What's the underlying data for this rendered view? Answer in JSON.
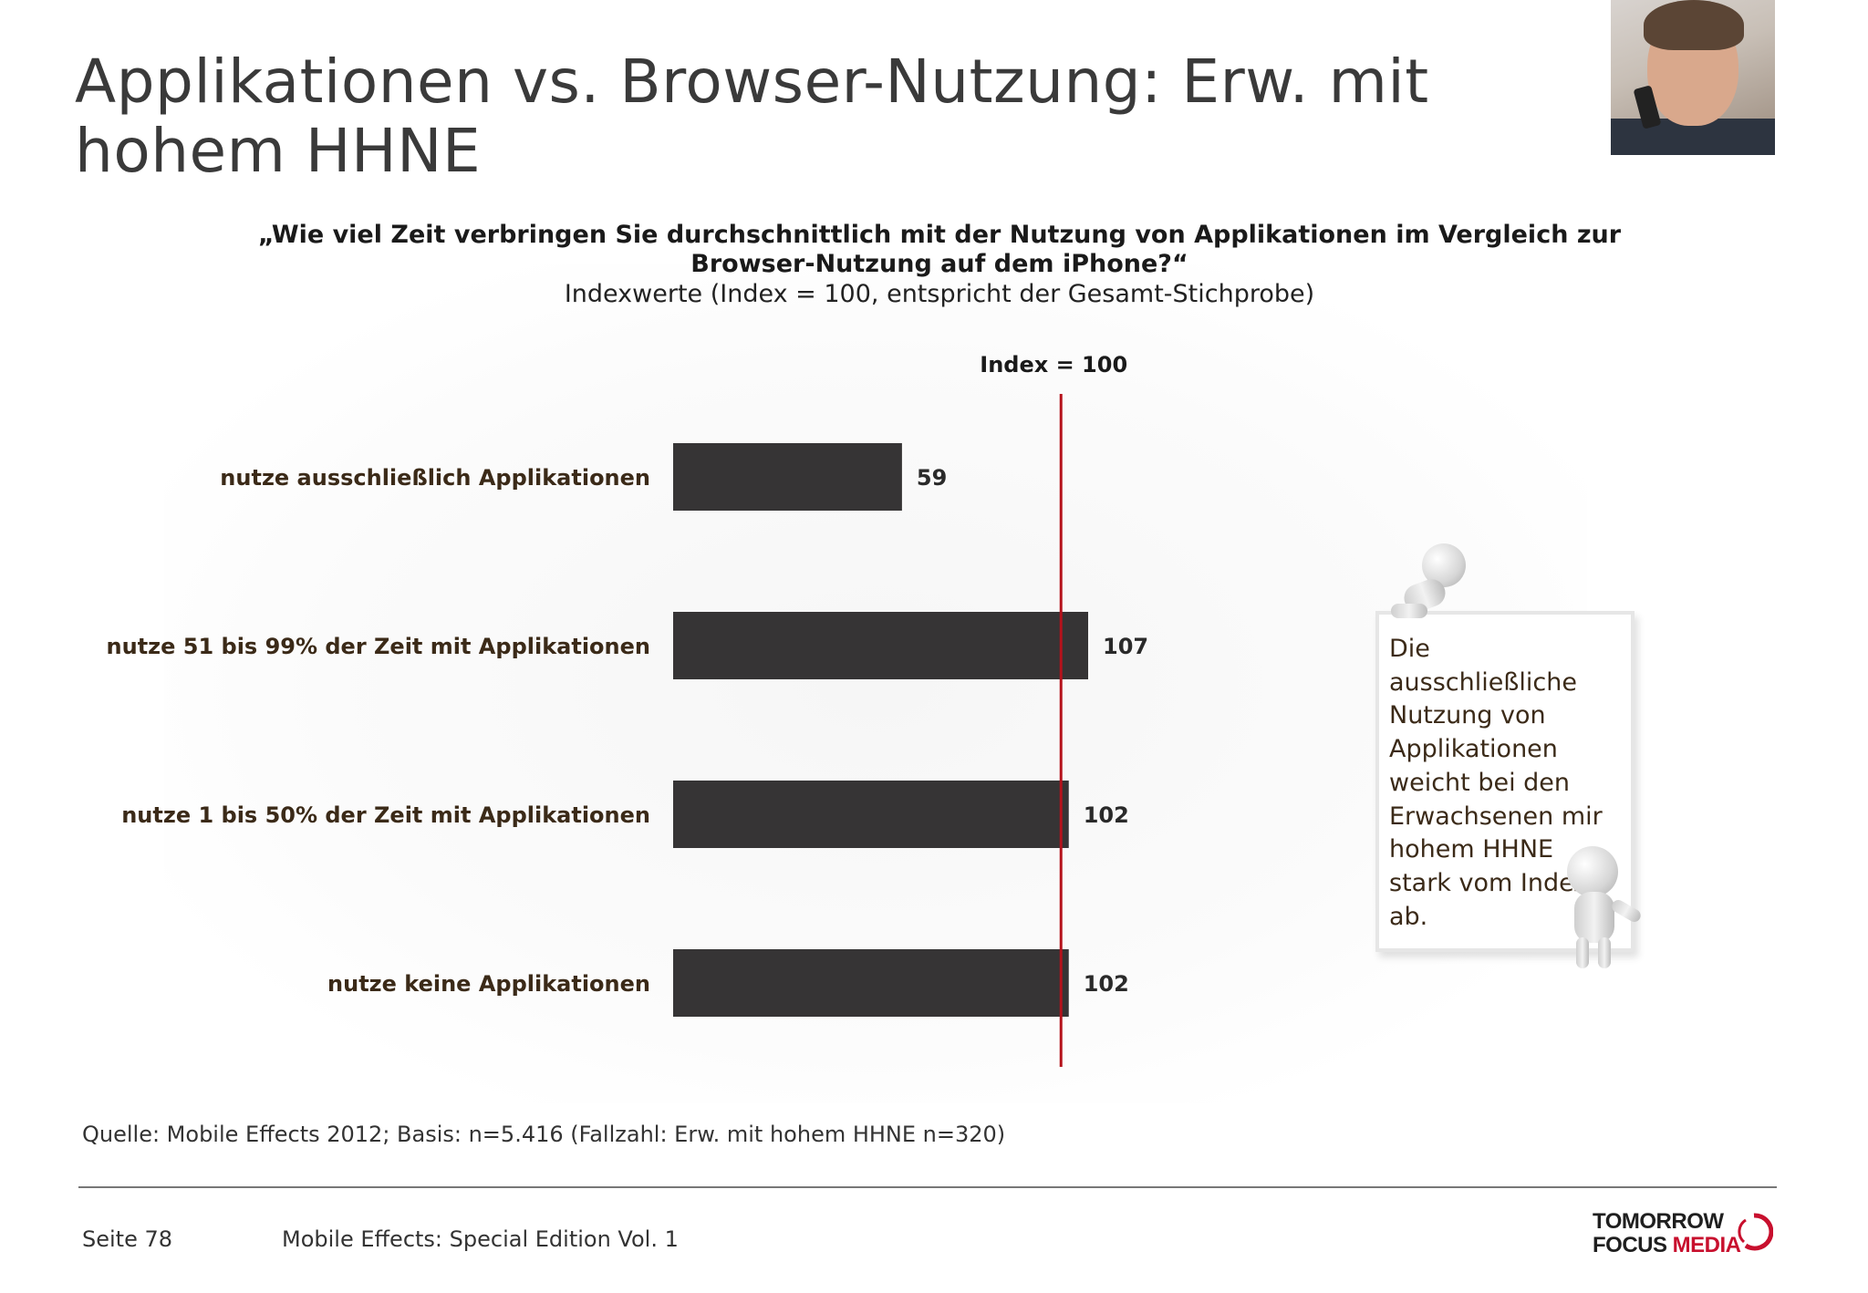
{
  "title": "Applikationen vs. Browser-Nutzung: Erw. mit hohem HHNE",
  "question": "„Wie viel Zeit verbringen Sie durchschnittlich mit der Nutzung von Applikationen im Vergleich zur Browser-Nutzung auf dem iPhone?“",
  "subquestion": "Indexwerte (Index = 100, entspricht der Gesamt-Stichprobe)",
  "note": "Die ausschließliche Nutzung von Applikationen weicht bei den Erwachsenen mir hohem HHNE stark vom Index ab.",
  "source": "Quelle: Mobile Effects 2012; Basis: n=5.416 (Fallzahl: Erw. mit hohem HHNE n=320)",
  "footer": {
    "page": "Seite 78",
    "edition": "Mobile Effects: Special Edition Vol. 1",
    "logo_line1": "TOMORROW",
    "logo_line2a": "FOCUS ",
    "logo_line2b": "MEDIA"
  },
  "colors": {
    "bar": "#363435",
    "reference_line": "#b5121b",
    "category_label": "#3b2a18",
    "accent": "#c8102e"
  },
  "chart_data": {
    "type": "bar",
    "orientation": "horizontal",
    "categories": [
      "nutze ausschließlich Applikationen",
      "nutze 51 bis 99% der Zeit mit Applikationen",
      "nutze 1 bis 50% der Zeit mit Applikationen",
      "nutze keine Applikationen"
    ],
    "values": [
      59,
      107,
      102,
      102
    ],
    "data_labels": [
      "59",
      "107",
      "102",
      "102"
    ],
    "reference_line": {
      "value": 100,
      "label": "Index = 100"
    },
    "xlim": [
      0,
      107
    ],
    "grid": false,
    "legend": "none"
  }
}
